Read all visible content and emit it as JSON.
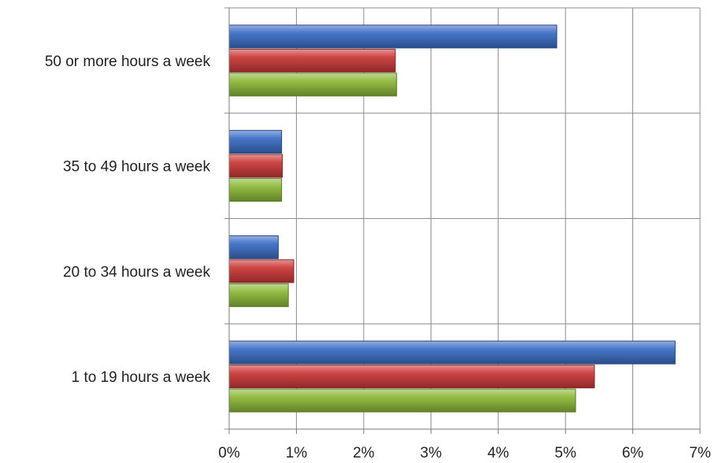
{
  "chart_data": {
    "type": "bar",
    "orientation": "horizontal",
    "categories": [
      "50 or more hours a week",
      "35 to 49 hours a week",
      "20 to 34 hours a week",
      "1 to 19 hours a week"
    ],
    "series": [
      {
        "color": "#3d6fc6",
        "values": [
          4.87,
          0.78,
          0.73,
          6.63
        ]
      },
      {
        "color": "#cc3b3b",
        "values": [
          2.47,
          0.79,
          0.96,
          5.43
        ]
      },
      {
        "color": "#8dba3a",
        "values": [
          2.49,
          0.78,
          0.88,
          5.15
        ]
      }
    ],
    "xlim": [
      0,
      7
    ],
    "x_ticks": [
      "0%",
      "1%",
      "2%",
      "3%",
      "4%",
      "5%",
      "6%",
      "7%"
    ],
    "grid": true,
    "legend": "none",
    "title": "",
    "xlabel": "",
    "ylabel": ""
  }
}
